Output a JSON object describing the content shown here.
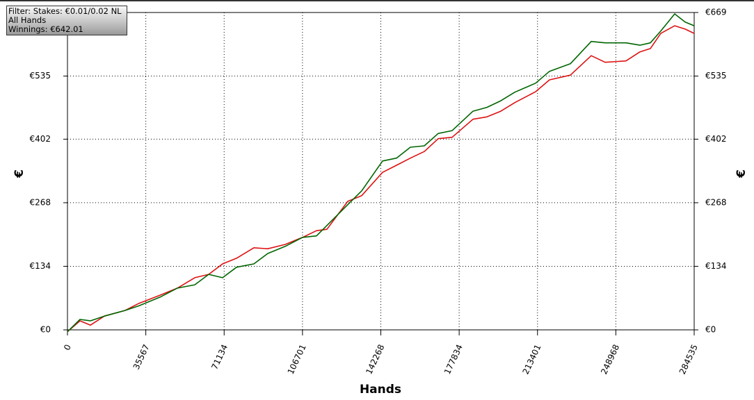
{
  "chart_data": {
    "type": "line",
    "filter": [
      "Filter: Stakes: €0.01/0.02 NL",
      "All Hands",
      "Winnings: €642.01"
    ],
    "xlabel": "Hands",
    "ylabel": "€",
    "y2label": "€",
    "x": [
      0,
      5684,
      10421,
      16737,
      26211,
      32527,
      42001,
      49896,
      57791,
      64107,
      70423,
      76739,
      84634,
      90950,
      98845,
      106740,
      113056,
      117793,
      127267,
      133583,
      143057,
      149373,
      155689,
      162005,
      168321,
      174637,
      184111,
      190427,
      196743,
      203059,
      212533,
      218849,
      228323,
      237797,
      244113,
      253587,
      259903,
      264640,
      269377,
      275693,
      280430,
      284535
    ],
    "series": [
      {
        "color": "#006400",
        "values": [
          -4,
          22,
          19,
          29,
          41,
          51,
          69,
          88,
          95,
          117,
          110,
          132,
          139,
          161,
          176,
          195,
          198,
          220,
          264,
          293,
          356,
          362,
          385,
          388,
          414,
          420,
          461,
          469,
          483,
          501,
          520,
          545,
          561,
          608,
          605,
          605,
          600,
          605,
          630,
          666,
          649,
          641
        ]
      },
      {
        "color": "#dd1111",
        "values": [
          -4,
          19,
          10,
          29,
          41,
          56,
          73,
          88,
          110,
          117,
          139,
          151,
          173,
          171,
          180,
          195,
          209,
          212,
          271,
          283,
          332,
          347,
          362,
          376,
          403,
          406,
          444,
          449,
          461,
          479,
          502,
          527,
          537,
          578,
          564,
          567,
          586,
          593,
          625,
          641,
          634,
          625
        ]
      }
    ],
    "xlim": [
      0,
      284535
    ],
    "xticks": [
      0,
      35567,
      71134,
      106701,
      142268,
      177834,
      213401,
      248968,
      284535
    ],
    "ylim": [
      0,
      669
    ],
    "yticks": [
      {
        "value": 0,
        "label": "€0"
      },
      {
        "value": 134,
        "label": "€134"
      },
      {
        "value": 268,
        "label": "€268"
      },
      {
        "value": 402,
        "label": "€402"
      },
      {
        "value": 535,
        "label": "€535"
      },
      {
        "value": 669,
        "label": "€669"
      }
    ],
    "grid": true
  }
}
